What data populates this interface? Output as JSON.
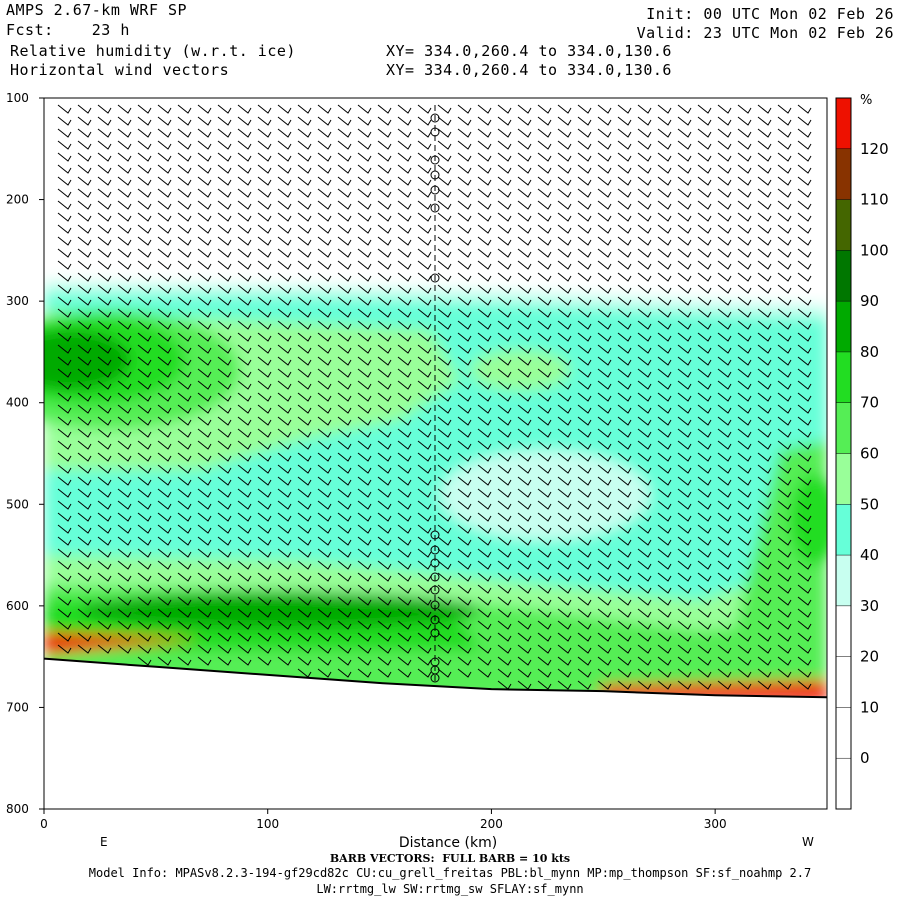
{
  "header": {
    "model": "AMPS 2.67-km WRF SP",
    "fcst_label": "Fcst:",
    "fcst_value": "23 h",
    "field1": "Relative humidity (w.r.t. ice)",
    "field2": "Horizontal wind vectors",
    "init": "Init: 00 UTC Mon 02 Feb 26",
    "valid": "Valid: 23 UTC Mon 02 Feb 26",
    "xy1": "XY= 334.0,260.4 to 334.0,130.6",
    "xy2": "XY= 334.0,260.4 to 334.0,130.6"
  },
  "footer": {
    "barb_note": "BARB VECTORS:  FULL BARB = 10 kts",
    "model_info": "Model Info: MPASv8.2.3-194-gf29cd82c CU:cu_grell_freitas PBL:bl_mynn MP:mp_thompson SF:sf_noahmp 2.7",
    "model_info2": "LW:rrtmg_lw SW:rrtmg_sw SFLAY:sf_mynn"
  },
  "chart_data": {
    "type": "heatmap",
    "title": "Relative humidity (w.r.t. ice)",
    "xlabel": "Distance (km)",
    "ylabel": "",
    "x_range": [
      0,
      350
    ],
    "y_range": [
      100,
      800
    ],
    "y_inverted": true,
    "x_ticks": [
      0,
      100,
      200,
      300
    ],
    "y_ticks": [
      100,
      200,
      300,
      400,
      500,
      600,
      700,
      800
    ],
    "x_end_labels": {
      "left": "E",
      "right": "W"
    },
    "colorbar": {
      "unit": "%",
      "levels": [
        0,
        10,
        20,
        30,
        40,
        50,
        60,
        70,
        80,
        90,
        100,
        110,
        120
      ],
      "colors": [
        "#ffffff",
        "#ffffff",
        "#ffffff",
        "#ffffff",
        "#c8fff0",
        "#66ffd8",
        "#99ff99",
        "#55ee55",
        "#22dd22",
        "#00aa00",
        "#007700",
        "#446600",
        "#883300",
        "#ee1100"
      ]
    },
    "terrain": {
      "distance_km": [
        0,
        50,
        100,
        150,
        200,
        250,
        300,
        350
      ],
      "pressure_hpa": [
        652,
        660,
        668,
        676,
        682,
        684,
        688,
        690
      ]
    }
  }
}
